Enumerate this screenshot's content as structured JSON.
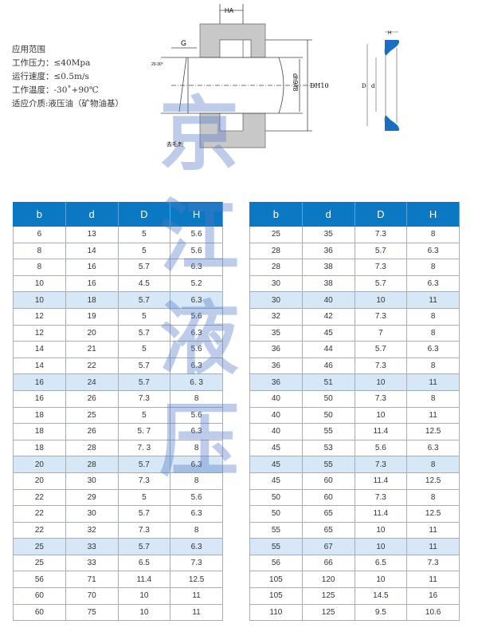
{
  "specs": {
    "title": "应用范围",
    "pressure": "工作压力：≤40Mpa",
    "speed": "运行速度：≤0.5m/s",
    "temperature": "工作温度：-30˚+90℃",
    "medium": "适应介质:液压油（矿物油基）"
  },
  "diagram": {
    "label_ha": "HA",
    "label_g": "G",
    "label_angle": "20-30°",
    "label_shaft": "dh9/f8",
    "label_bore": "DH10",
    "label_deburr": "去毛刺",
    "label_h": "H",
    "label_D": "D",
    "label_d": "d",
    "seal_color": "#1a6fc0",
    "housing_color": "#c8c8c8"
  },
  "watermark": "京江液压",
  "colors": {
    "header": "#0a78c2",
    "highlight_row": "#d6e8f7"
  },
  "tables": {
    "headers": [
      "b",
      "d",
      "D",
      "H"
    ],
    "left": [
      [
        "6",
        "13",
        "5",
        "5.6"
      ],
      [
        "8",
        "14",
        "5",
        "5.6"
      ],
      [
        "8",
        "16",
        "5.7",
        "6.3"
      ],
      [
        "10",
        "16",
        "4.5",
        "5.2"
      ],
      [
        "10",
        "18",
        "5.7",
        "6.3"
      ],
      [
        "12",
        "19",
        "5",
        "5.6"
      ],
      [
        "12",
        "20",
        "5.7",
        "6.3"
      ],
      [
        "14",
        "21",
        "5",
        "5.6"
      ],
      [
        "14",
        "22",
        "5.7",
        "6.3"
      ],
      [
        "16",
        "24",
        "5.7",
        "6. 3"
      ],
      [
        "16",
        "26",
        "7.3",
        "8"
      ],
      [
        "18",
        "25",
        "5",
        "5.6"
      ],
      [
        "18",
        "26",
        "5. 7",
        "6.3"
      ],
      [
        "18",
        "28",
        "7. 3",
        "8"
      ],
      [
        "20",
        "28",
        "5.7",
        "6.3"
      ],
      [
        "20",
        "30",
        "7.3",
        "8"
      ],
      [
        "22",
        "29",
        "5",
        "5.6"
      ],
      [
        "22",
        "30",
        "5.7",
        "6.3"
      ],
      [
        "22",
        "32",
        "7.3",
        "8"
      ],
      [
        "25",
        "33",
        "5.7",
        "6.3"
      ],
      [
        "25",
        "33",
        "6.5",
        "7.3"
      ],
      [
        "56",
        "71",
        "11.4",
        "12.5"
      ],
      [
        "60",
        "70",
        "10",
        "11"
      ],
      [
        "60",
        "75",
        "10",
        "11"
      ]
    ],
    "right": [
      [
        "25",
        "35",
        "7.3",
        "8"
      ],
      [
        "28",
        "36",
        "5.7",
        "6.3"
      ],
      [
        "28",
        "38",
        "7.3",
        "8"
      ],
      [
        "30",
        "38",
        "5.7",
        "6.3"
      ],
      [
        "30",
        "40",
        "10",
        "11"
      ],
      [
        "32",
        "42",
        "7.3",
        "8"
      ],
      [
        "35",
        "45",
        "7",
        "8"
      ],
      [
        "36",
        "44",
        "5.7",
        "6.3"
      ],
      [
        "36",
        "46",
        "7.3",
        "8"
      ],
      [
        "36",
        "51",
        "10",
        "11"
      ],
      [
        "40",
        "50",
        "7.3",
        "8"
      ],
      [
        "40",
        "50",
        "10",
        "11"
      ],
      [
        "40",
        "55",
        "11.4",
        "12.5"
      ],
      [
        "45",
        "53",
        "5.6",
        "6.3"
      ],
      [
        "45",
        "55",
        "7.3",
        "8"
      ],
      [
        "45",
        "60",
        "11.4",
        "12.5"
      ],
      [
        "50",
        "60",
        "7.3",
        "8"
      ],
      [
        "50",
        "65",
        "11.4",
        "12.5"
      ],
      [
        "55",
        "65",
        "10",
        "11"
      ],
      [
        "55",
        "67",
        "10",
        "11"
      ],
      [
        "56",
        "66",
        "6.5",
        "7.3"
      ],
      [
        "105",
        "120",
        "10",
        "11"
      ],
      [
        "105",
        "125",
        "14.5",
        "16"
      ],
      [
        "110",
        "125",
        "9.5",
        "10.6"
      ]
    ],
    "highlighted_rows": [
      4,
      9,
      14,
      19
    ]
  }
}
